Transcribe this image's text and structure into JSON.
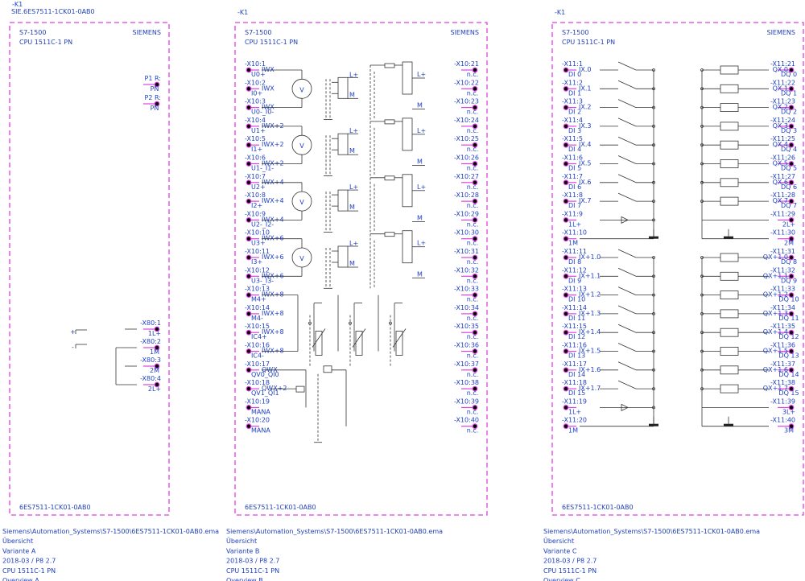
{
  "panels": [
    {
      "designation": "-K1",
      "article": "SIE.6ES7511-1CK01-0AB0",
      "family": "S7-1500",
      "cpu": "CPU 1511C-1 PN",
      "brand": "SIEMENS",
      "order_no": "6ES7511-1CK01-0AB0",
      "labels": {
        "plus": "+",
        "minus": "-"
      },
      "left_pins": [],
      "right_pins": [
        {
          "id": "P1 R:",
          "sub": "PN"
        },
        {
          "id": "P2 R:",
          "sub": "PN"
        },
        {
          "id": "-X80:1",
          "sub": "1L+"
        },
        {
          "id": "-X80:2",
          "sub": "1M"
        },
        {
          "id": "-X80:3",
          "sub": "2M"
        },
        {
          "id": "-X80:4",
          "sub": "2L+"
        }
      ],
      "footer": [
        "Siemens\\Automation_Systems\\S7-1500\\6ES7511-1CK01-0AB0.ema",
        "Übersicht",
        "Variante A",
        "2018-03 / P8 2.7",
        "CPU 1511C-1 PN",
        "Overview A"
      ]
    },
    {
      "designation": "-K1",
      "family": "S7-1500",
      "cpu": "CPU 1511C-1 PN",
      "brand": "SIEMENS",
      "order_no": "6ES7511-1CK01-0AB0",
      "labels": {
        "voltmeter": "V",
        "lplus": "L+",
        "m": "M"
      },
      "left_pins": [
        {
          "id": "-X10:1",
          "name": "IWX",
          "sub": "U0+"
        },
        {
          "id": "-X10:2",
          "name": "IWX",
          "sub": "I0+"
        },
        {
          "id": "-X10:3",
          "name": "IWX",
          "sub": "U0-_I0-"
        },
        {
          "id": "-X10:4",
          "name": "IWX+2",
          "sub": "U1+"
        },
        {
          "id": "-X10:5",
          "name": "IWX+2",
          "sub": "I1+"
        },
        {
          "id": "-X10:6",
          "name": "IWX+2",
          "sub": "U1-_I1-"
        },
        {
          "id": "-X10:7",
          "name": "IWX+4",
          "sub": "U2+"
        },
        {
          "id": "-X10:8",
          "name": "IWX+4",
          "sub": "I2+"
        },
        {
          "id": "-X10:9",
          "name": "IWX+4",
          "sub": "U2-_I2-"
        },
        {
          "id": "-X10:10",
          "name": "IWX+6",
          "sub": "U3+"
        },
        {
          "id": "-X10:11",
          "name": "IWX+6",
          "sub": "I3+"
        },
        {
          "id": "-X10:12",
          "name": "IWX+6",
          "sub": "U3-_I3-"
        },
        {
          "id": "-X10:13",
          "name": "IWX+8",
          "sub": "M4+"
        },
        {
          "id": "-X10:14",
          "name": "IWX+8",
          "sub": "M4-"
        },
        {
          "id": "-X10:15",
          "name": "IWX+8",
          "sub": "IC4+"
        },
        {
          "id": "-X10:16",
          "name": "IWX+8",
          "sub": "IC4-"
        },
        {
          "id": "-X10:17",
          "name": "QWX",
          "sub": "QV0_QI0"
        },
        {
          "id": "-X10:18",
          "name": "QWX+2",
          "sub": "QV1_QI1"
        },
        {
          "id": "-X10:19",
          "sub": "MANA"
        },
        {
          "id": "-X10:20",
          "sub": "MANA"
        }
      ],
      "right_pins": [
        {
          "id": "-X10:21",
          "sub": "n.c."
        },
        {
          "id": "-X10:22",
          "sub": "n.c."
        },
        {
          "id": "-X10:23",
          "sub": "n.c."
        },
        {
          "id": "-X10:24",
          "sub": "n.c."
        },
        {
          "id": "-X10:25",
          "sub": "n.c."
        },
        {
          "id": "-X10:26",
          "sub": "n.c."
        },
        {
          "id": "-X10:27",
          "sub": "n.c."
        },
        {
          "id": "-X10:28",
          "sub": "n.c."
        },
        {
          "id": "-X10:29",
          "sub": "n.c."
        },
        {
          "id": "-X10:30",
          "sub": "n.c."
        },
        {
          "id": "-X10:31",
          "sub": "n.c."
        },
        {
          "id": "-X10:32",
          "sub": "n.c."
        },
        {
          "id": "-X10:33",
          "sub": "n.c."
        },
        {
          "id": "-X10:34",
          "sub": "n.c."
        },
        {
          "id": "-X10:35",
          "sub": "n.c."
        },
        {
          "id": "-X10:36",
          "sub": "n.c."
        },
        {
          "id": "-X10:37",
          "sub": "n.c."
        },
        {
          "id": "-X10:38",
          "sub": "n.c."
        },
        {
          "id": "-X10:39",
          "sub": "n.c."
        },
        {
          "id": "-X10:40",
          "sub": "n.c."
        }
      ],
      "footer": [
        "Siemens\\Automation_Systems\\S7-1500\\6ES7511-1CK01-0AB0.ema",
        "Übersicht",
        "Variante B",
        "2018-03 / P8 2.7",
        "CPU 1511C-1 PN",
        "Overview B"
      ]
    },
    {
      "designation": "-K1",
      "family": "S7-1500",
      "cpu": "CPU 1511C-1 PN",
      "brand": "SIEMENS",
      "order_no": "6ES7511-1CK01-0AB0",
      "labels": {},
      "left_pins": [
        {
          "id": "-X11:1",
          "name": "IX.0",
          "sub": "DI 0"
        },
        {
          "id": "-X11:2",
          "name": "IX.1",
          "sub": "DI 1"
        },
        {
          "id": "-X11:3",
          "name": "IX.2",
          "sub": "DI 2"
        },
        {
          "id": "-X11:4",
          "name": "IX.3",
          "sub": "DI 3"
        },
        {
          "id": "-X11:5",
          "name": "IX.4",
          "sub": "DI 4"
        },
        {
          "id": "-X11:6",
          "name": "IX.5",
          "sub": "DI 5"
        },
        {
          "id": "-X11:7",
          "name": "IX.6",
          "sub": "DI 6"
        },
        {
          "id": "-X11:8",
          "name": "IX.7",
          "sub": "DI 7"
        },
        {
          "id": "-X11:9",
          "sub": "1L+"
        },
        {
          "id": "-X11:10",
          "sub": "1M"
        },
        {
          "id": "-X11:11",
          "name": "IX+1.0",
          "sub": "DI 8"
        },
        {
          "id": "-X11:12",
          "name": "IX+1.1",
          "sub": "DI 9"
        },
        {
          "id": "-X11:13",
          "name": "IX+1.2",
          "sub": "DI 10"
        },
        {
          "id": "-X11:14",
          "name": "IX+1.3",
          "sub": "DI 11"
        },
        {
          "id": "-X11:15",
          "name": "IX+1.4",
          "sub": "DI 12"
        },
        {
          "id": "-X11:16",
          "name": "IX+1.5",
          "sub": "DI 13"
        },
        {
          "id": "-X11:17",
          "name": "IX+1.6",
          "sub": "DI 14"
        },
        {
          "id": "-X11:18",
          "name": "IX+1.7",
          "sub": "DI 15"
        },
        {
          "id": "-X11:19",
          "sub": "1L+"
        },
        {
          "id": "-X11:20",
          "sub": "1M"
        }
      ],
      "right_pins": [
        {
          "id": "-X11:21",
          "name": "QX.0",
          "sub": "DQ 0"
        },
        {
          "id": "-X11:22",
          "name": "QX.1",
          "sub": "DQ 1"
        },
        {
          "id": "-X11:23",
          "name": "QX.2",
          "sub": "DQ 2"
        },
        {
          "id": "-X11:24",
          "name": "QX.3",
          "sub": "DQ 3"
        },
        {
          "id": "-X11:25",
          "name": "QX.4",
          "sub": "DQ 4"
        },
        {
          "id": "-X11:26",
          "name": "QX.5",
          "sub": "DQ 5"
        },
        {
          "id": "-X11:27",
          "name": "QX.6",
          "sub": "DQ 6"
        },
        {
          "id": "-X11:28",
          "name": "QX.7",
          "sub": "DQ 7"
        },
        {
          "id": "-X11:29",
          "sub": "2L+"
        },
        {
          "id": "-X11:30",
          "sub": "2M"
        },
        {
          "id": "-X11:31",
          "name": "QX+1.0",
          "sub": "DQ 8"
        },
        {
          "id": "-X11:32",
          "name": "QX+1.1",
          "sub": "DQ 9"
        },
        {
          "id": "-X11:33",
          "name": "QX+1.2",
          "sub": "DQ 10"
        },
        {
          "id": "-X11:34",
          "name": "QX+1.3",
          "sub": "DQ 11"
        },
        {
          "id": "-X11:35",
          "name": "QX+1.4",
          "sub": "DQ 12"
        },
        {
          "id": "-X11:36",
          "name": "QX+1.5",
          "sub": "DQ 13"
        },
        {
          "id": "-X11:37",
          "name": "QX+1.6",
          "sub": "DQ 14"
        },
        {
          "id": "-X11:38",
          "name": "QX+1.7",
          "sub": "DQ 15"
        },
        {
          "id": "-X11:39",
          "sub": "3L+"
        },
        {
          "id": "-X11:40",
          "sub": "3M"
        }
      ],
      "footer": [
        "Siemens\\Automation_Systems\\S7-1500\\6ES7511-1CK01-0AB0.ema",
        "Übersicht",
        "Variante C",
        "2018-03 / P8 2.7",
        "CPU 1511C-1 PN",
        "Overview C"
      ]
    }
  ]
}
